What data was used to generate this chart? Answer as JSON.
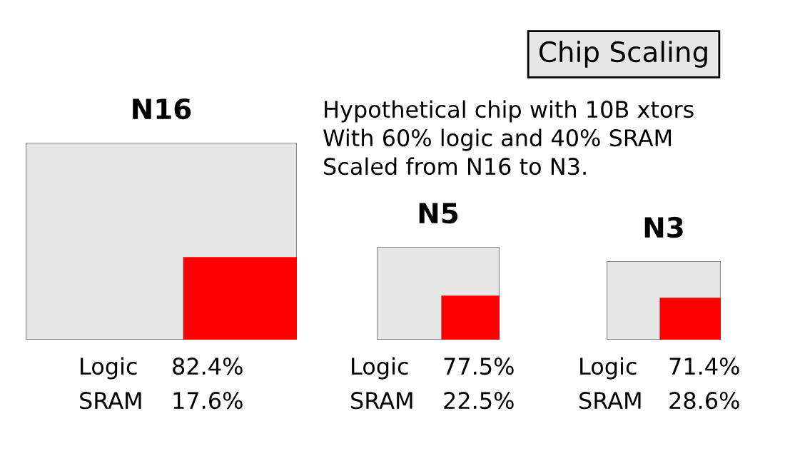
{
  "chart_data": [
    {
      "type": "other",
      "title": "Chip Scaling",
      "annotations": [
        "Hypothetical chip with 10B xtors",
        "With 60% logic and 40% SRAM",
        "Scaled from N16 to N3."
      ]
    },
    {
      "type": "other",
      "title": "N16",
      "categories": [
        "Logic",
        "SRAM"
      ],
      "values": [
        82.4,
        17.6
      ],
      "value_labels": [
        "82.4%",
        "17.6%"
      ],
      "colors": [
        "#e6e6e6",
        "#ff0000"
      ]
    },
    {
      "type": "other",
      "title": "N5",
      "categories": [
        "Logic",
        "SRAM"
      ],
      "values": [
        77.5,
        22.5
      ],
      "value_labels": [
        "77.5%",
        "22.5%"
      ],
      "colors": [
        "#e6e6e6",
        "#ff0000"
      ]
    },
    {
      "type": "other",
      "title": "N3",
      "categories": [
        "Logic",
        "SRAM"
      ],
      "values": [
        71.4,
        28.6
      ],
      "value_labels": [
        "71.4%",
        "28.6%"
      ],
      "colors": [
        "#e6e6e6",
        "#ff0000"
      ]
    }
  ]
}
